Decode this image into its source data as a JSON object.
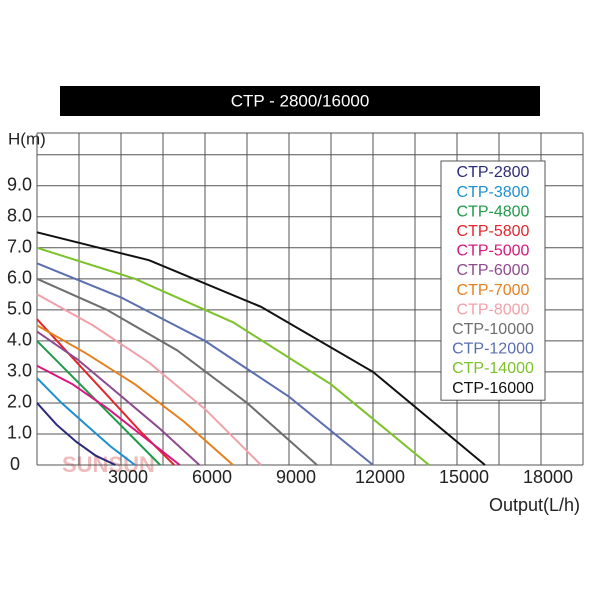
{
  "chart_data": {
    "type": "line",
    "title": "CTP - 2800/16000",
    "y_axis_label": "H(m)",
    "x_axis_label": "Output(L/h)",
    "watermark": "SUNSUN",
    "xlim": [
      0,
      19500
    ],
    "ylim": [
      0,
      10.7
    ],
    "xticks": [
      3000,
      6000,
      9000,
      12000,
      15000,
      18000
    ],
    "yticks": [
      0,
      {
        "value": 1,
        "label": "1.0"
      },
      {
        "value": 2,
        "label": "2.0"
      },
      {
        "value": 3,
        "label": "3.0"
      },
      {
        "value": 4,
        "label": "4.0"
      },
      {
        "value": 5,
        "label": "5.0"
      },
      {
        "value": 6,
        "label": "6.0"
      },
      {
        "value": 7,
        "label": "7.0"
      },
      {
        "value": 8,
        "label": "8.0"
      },
      {
        "value": 9,
        "label": "9.0"
      }
    ],
    "grid": true,
    "legend": "upper right",
    "series": [
      {
        "name": "CTP-2800",
        "color": "#2b2a7a",
        "x": [
          0,
          700,
          1400,
          2100,
          2800
        ],
        "values": [
          2.0,
          1.3,
          0.75,
          0.3,
          0
        ]
      },
      {
        "name": "CTP-3800",
        "color": "#1e8fd0",
        "x": [
          0,
          875,
          1750,
          2625,
          3500
        ],
        "values": [
          2.8,
          2.0,
          1.3,
          0.6,
          0
        ]
      },
      {
        "name": "CTP-4800",
        "color": "#1f9a48",
        "x": [
          0,
          1100,
          2200,
          3300,
          4400
        ],
        "values": [
          4.0,
          3.0,
          2.0,
          1.0,
          0
        ]
      },
      {
        "name": "CTP-5800",
        "color": "#e3262b",
        "x": [
          0,
          1225,
          2450,
          3675,
          4900
        ],
        "values": [
          4.7,
          3.5,
          2.3,
          1.1,
          0
        ]
      },
      {
        "name": "CTP-5000",
        "color": "#d6177e",
        "x": [
          0,
          1275,
          2550,
          3825,
          5100
        ],
        "values": [
          3.2,
          2.6,
          1.8,
          0.9,
          0
        ]
      },
      {
        "name": "CTP-6000",
        "color": "#8e4a8e",
        "x": [
          0,
          1450,
          2900,
          4350,
          5800
        ],
        "values": [
          4.3,
          3.4,
          2.3,
          1.2,
          0
        ]
      },
      {
        "name": "CTP-7000",
        "color": "#e5801f",
        "x": [
          0,
          1750,
          3500,
          5250,
          7000
        ],
        "values": [
          4.5,
          3.6,
          2.6,
          1.4,
          0
        ]
      },
      {
        "name": "CTP-8000",
        "color": "#f2a0a8",
        "x": [
          0,
          2000,
          4000,
          6000,
          8000
        ],
        "values": [
          5.5,
          4.5,
          3.3,
          1.8,
          0
        ]
      },
      {
        "name": "CTP-10000",
        "color": "#6e6e6e",
        "x": [
          0,
          2500,
          5000,
          7500,
          10000
        ],
        "values": [
          6.0,
          5.0,
          3.7,
          2.0,
          0
        ]
      },
      {
        "name": "CTP-12000",
        "color": "#5b6fb0",
        "x": [
          0,
          3000,
          6000,
          9000,
          12000
        ],
        "values": [
          6.5,
          5.4,
          4.0,
          2.2,
          0
        ]
      },
      {
        "name": "CTP-14000",
        "color": "#7cc22b",
        "x": [
          0,
          3500,
          7000,
          10500,
          14000
        ],
        "values": [
          7.0,
          6.0,
          4.6,
          2.6,
          0
        ]
      },
      {
        "name": "CTP-16000",
        "color": "#111111",
        "x": [
          0,
          4000,
          8000,
          12000,
          16000
        ],
        "values": [
          7.5,
          6.6,
          5.1,
          3.0,
          0
        ]
      }
    ]
  }
}
